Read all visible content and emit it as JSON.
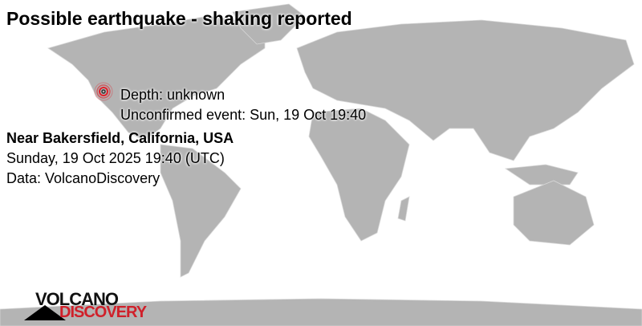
{
  "title": "Possible earthquake - shaking reported",
  "event": {
    "depth": "Depth: unknown",
    "unconfirmed": "Unconfirmed event: Sun, 19 Oct 19:40",
    "location": "Near Bakersfield, California, USA",
    "datetime": "Sunday, 19 Oct 2025 19:40 (UTC)",
    "source": "Data: VolcanoDiscovery"
  },
  "marker": {
    "icon": "epicenter-rings-icon",
    "color": "#e0202a"
  },
  "colors": {
    "land": "#b4b4b4",
    "ocean": "#ffffff",
    "border": "#d8d8d8"
  },
  "logo": {
    "line1": "VOLCANO",
    "line2": "DISCOVERY"
  }
}
